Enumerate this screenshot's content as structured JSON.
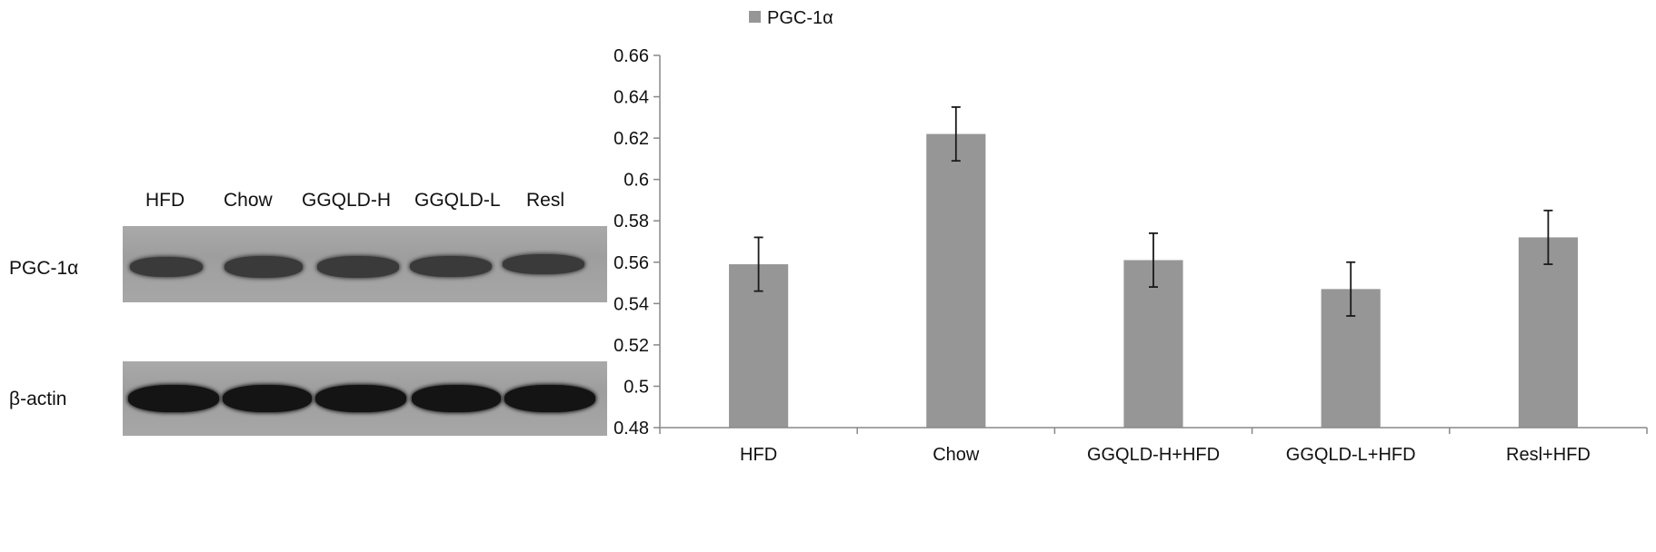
{
  "blot": {
    "lanes": [
      "HFD",
      "Chow",
      "GGQLD-H",
      "GGQLD-L",
      "Resl"
    ],
    "rows": [
      {
        "label": "PGC-1α",
        "band_color": "#3a3a3a"
      },
      {
        "label": "β-actin",
        "band_color": "#141414"
      }
    ]
  },
  "chart_data": {
    "type": "bar",
    "legend": {
      "position": "top-left",
      "entries": [
        "PGC-1α"
      ]
    },
    "categories": [
      "HFD",
      "Chow",
      "GGQLD-H+HFD",
      "GGQLD-L+HFD",
      "Resl+HFD"
    ],
    "series": [
      {
        "name": "PGC-1α",
        "color": "#969696",
        "values": [
          0.559,
          0.622,
          0.561,
          0.547,
          0.572
        ],
        "error": [
          0.013,
          0.013,
          0.013,
          0.013,
          0.013
        ]
      }
    ],
    "ylim": [
      0.48,
      0.66
    ],
    "yticks": [
      "0.66",
      "0.64",
      "0.62",
      "0.6",
      "0.58",
      "0.56",
      "0.54",
      "0.52",
      "0.5",
      "0.48"
    ],
    "grid": false,
    "xlabel": "",
    "ylabel": ""
  }
}
